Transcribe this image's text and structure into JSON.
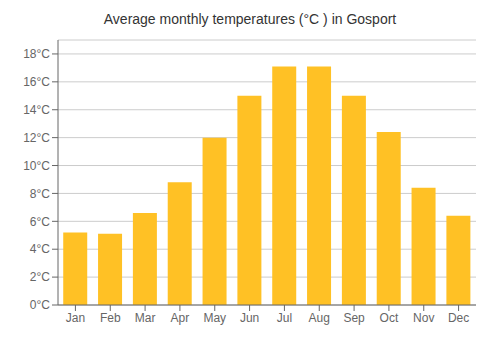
{
  "chart_data": {
    "type": "bar",
    "title": "Average monthly temperatures (°C ) in Gosport",
    "categories": [
      "Jan",
      "Feb",
      "Mar",
      "Apr",
      "May",
      "Jun",
      "Jul",
      "Aug",
      "Sep",
      "Oct",
      "Nov",
      "Dec"
    ],
    "values": [
      5.2,
      5.1,
      6.6,
      8.8,
      12.0,
      15.0,
      17.1,
      17.1,
      15.0,
      12.4,
      8.4,
      6.4
    ],
    "color": "#FFC125",
    "ylim": [
      0,
      19
    ],
    "yticks": [
      {
        "value": 0,
        "label": "0°C"
      },
      {
        "value": 2,
        "label": "2°C"
      },
      {
        "value": 4,
        "label": "4°C"
      },
      {
        "value": 6,
        "label": "6°C"
      },
      {
        "value": 8,
        "label": "8°C"
      },
      {
        "value": 10,
        "label": "10°C"
      },
      {
        "value": 12,
        "label": "12°C"
      },
      {
        "value": 14,
        "label": "14°C"
      },
      {
        "value": 16,
        "label": "16°C"
      },
      {
        "value": 18,
        "label": "18°C"
      }
    ],
    "grid": true
  }
}
